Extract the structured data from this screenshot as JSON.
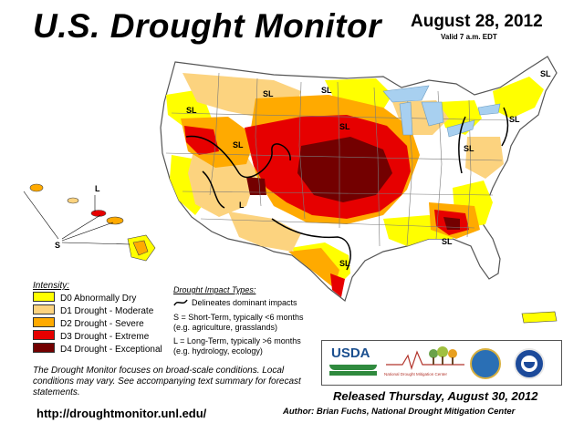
{
  "header": {
    "title": "U.S. Drought Monitor",
    "date": "August 28, 2012",
    "valid": "Valid 7 a.m. EDT"
  },
  "colors": {
    "D0": "#ffff00",
    "D1": "#fcd37f",
    "D2": "#ffaa00",
    "D3": "#e60000",
    "D4": "#730000",
    "land": "#ffffff",
    "water": "#a8d0f0",
    "borders": "#7a7a7a"
  },
  "map_labels": {
    "sl": "SL",
    "l": "L",
    "s": "S"
  },
  "legend": {
    "title": "Intensity:",
    "items": [
      {
        "code": "D0",
        "label": "D0 Abnormally Dry",
        "color": "#ffff00"
      },
      {
        "code": "D1",
        "label": "D1 Drought - Moderate",
        "color": "#fcd37f"
      },
      {
        "code": "D2",
        "label": "D2 Drought - Severe",
        "color": "#ffaa00"
      },
      {
        "code": "D3",
        "label": "D3 Drought - Extreme",
        "color": "#e60000"
      },
      {
        "code": "D4",
        "label": "D4 Drought - Exceptional",
        "color": "#730000"
      }
    ]
  },
  "impacts": {
    "title": "Drought Impact Types:",
    "delineates": "Delineates dominant impacts",
    "s_line1": "S = Short-Term, typically <6 months",
    "s_line2": "(e.g. agriculture, grasslands)",
    "l_line1": "L = Long-Term, typically >6 months",
    "l_line2": "(e.g. hydrology, ecology)"
  },
  "note": "The Drought Monitor focuses on broad-scale conditions. Local conditions may vary. See accompanying text summary for forecast statements.",
  "url": "http://droughtmonitor.unl.edu/",
  "released": "Released Thursday, August 30, 2012",
  "author": "Author: Brian Fuchs, National Drought Mitigation Center",
  "logos": {
    "usda": "USDA",
    "ndmc": "National Drought Mitigation Center"
  }
}
